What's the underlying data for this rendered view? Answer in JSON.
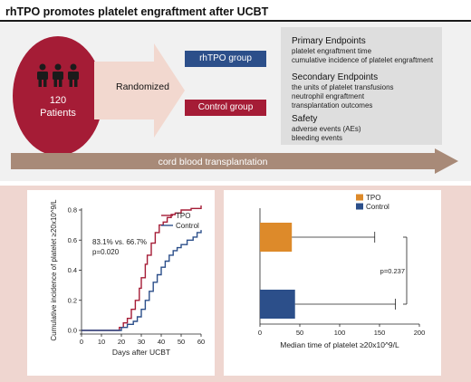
{
  "title": "rhTPO promotes platelet engraftment after UCBT",
  "patients": {
    "count": "120",
    "label": "Patients"
  },
  "randomized_label": "Randomized",
  "groups": {
    "rhtpo": "rhTPO group",
    "control": "Control group"
  },
  "endpoints": {
    "primary": {
      "heading": "Primary Endpoints",
      "items": [
        "platelet engraftment time",
        "cumulative incidence of platelet engraftment"
      ]
    },
    "secondary": {
      "heading": "Secondary Endpoints",
      "items": [
        "the units of platelet transfusions",
        "neutrophil engraftment",
        "transplantation outcomes"
      ]
    },
    "safety": {
      "heading": "Safety",
      "items": [
        "adverse events (AEs)",
        "bleeding events"
      ]
    }
  },
  "timeline_label": "cord blood transplantation",
  "colors": {
    "tpo_red": "#a51c36",
    "control_blue": "#2c4f8a",
    "orange": "#dd8a2a",
    "arrow_tan": "#a88a78",
    "pink_bg": "#efd6d0"
  },
  "chart_data": [
    {
      "type": "line",
      "title": "",
      "xlabel": "Days after UCBT",
      "ylabel": "Cumulative incidence of platelet ≥20x10^9/L",
      "xlim": [
        0,
        60
      ],
      "ylim": [
        0,
        0.8
      ],
      "xticks": [
        "0",
        "10",
        "20",
        "30",
        "40",
        "50",
        "60"
      ],
      "yticks": [
        "0.0",
        "0.2",
        "0.4",
        "0.6",
        "0.8"
      ],
      "annotation": [
        "83.1% vs. 66.7%",
        "p=0.020"
      ],
      "legend_position": "top-right",
      "series": [
        {
          "name": "TPO",
          "color": "#a51c36",
          "x": [
            0,
            17,
            19,
            21,
            23,
            25,
            27,
            29,
            30,
            32,
            33,
            35,
            37,
            39,
            41,
            43,
            45,
            47,
            50,
            55,
            60
          ],
          "y": [
            0,
            0,
            0.02,
            0.05,
            0.08,
            0.14,
            0.2,
            0.28,
            0.35,
            0.44,
            0.5,
            0.58,
            0.65,
            0.7,
            0.72,
            0.75,
            0.77,
            0.78,
            0.8,
            0.81,
            0.83
          ]
        },
        {
          "name": "Control",
          "color": "#2c4f8a",
          "x": [
            0,
            17,
            20,
            23,
            26,
            28,
            30,
            32,
            34,
            36,
            38,
            40,
            42,
            44,
            46,
            48,
            50,
            53,
            56,
            58,
            60
          ],
          "y": [
            0,
            0,
            0.02,
            0.04,
            0.06,
            0.09,
            0.14,
            0.2,
            0.26,
            0.32,
            0.37,
            0.42,
            0.46,
            0.5,
            0.53,
            0.55,
            0.57,
            0.6,
            0.62,
            0.65,
            0.667
          ]
        }
      ]
    },
    {
      "type": "bar",
      "orientation": "horizontal",
      "title": "",
      "xlabel": "Median time of platelet ≥20x10^9/L",
      "ylabel": "",
      "xlim": [
        0,
        200
      ],
      "xticks": [
        "0",
        "50",
        "100",
        "150",
        "200"
      ],
      "annotation": "p=0.237",
      "legend_position": "top-right",
      "series": [
        {
          "name": "TPO",
          "color": "#dd8a2a",
          "value": 40,
          "error_upper": 144
        },
        {
          "name": "Control",
          "color": "#2c4f8a",
          "value": 44,
          "error_upper": 170
        }
      ]
    }
  ]
}
